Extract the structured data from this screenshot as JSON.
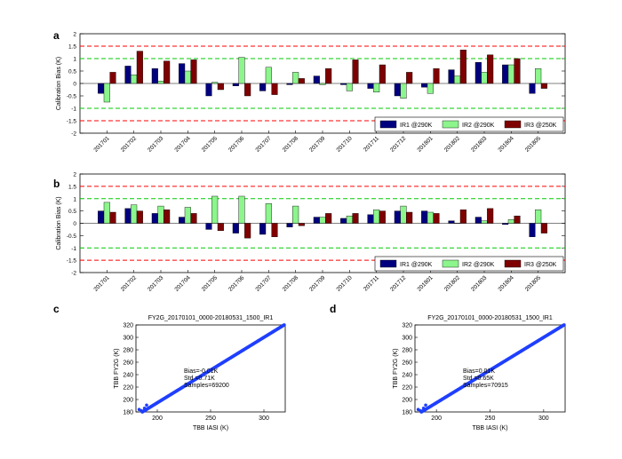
{
  "colors": {
    "IR1": "#00007f",
    "IR2": "#8cf58c",
    "IR3": "#7f0000",
    "limit_outer": "#ff0000",
    "limit_inner": "#00cc00",
    "scatter": "#1f3fff"
  },
  "chart_data": [
    {
      "panel": "a",
      "type": "bar",
      "ylabel": "Calibration Bias (K)",
      "ylim": [
        -2,
        2
      ],
      "yticks": [
        -2,
        -1.5,
        -1,
        -0.5,
        0,
        0.5,
        1,
        1.5,
        2
      ],
      "ytick_labels": [
        "-2",
        "-1.5",
        "-1",
        "-0.5",
        "0",
        "0.5",
        "1",
        "1.5",
        "2"
      ],
      "reference_lines": [
        {
          "y": 1.5,
          "color": "red"
        },
        {
          "y": 1,
          "color": "green"
        },
        {
          "y": -1,
          "color": "green"
        },
        {
          "y": -1.5,
          "color": "red"
        }
      ],
      "categories": [
        "201701",
        "201702",
        "201703",
        "201704",
        "201705",
        "201706",
        "201707",
        "201708",
        "201709",
        "201710",
        "201711",
        "201712",
        "201801",
        "201802",
        "201803",
        "201804",
        "201805"
      ],
      "series": [
        {
          "name": "IR1 @290K",
          "values": [
            -0.4,
            0.7,
            0.6,
            0.8,
            -0.5,
            -0.1,
            -0.3,
            -0.05,
            0.3,
            -0.05,
            -0.2,
            -0.5,
            -0.15,
            0.55,
            0.85,
            0.75,
            -0.4
          ]
        },
        {
          "name": "IR2 @290K",
          "values": [
            -0.75,
            0.35,
            0.1,
            0.5,
            0.05,
            1.05,
            0.65,
            0.45,
            -0.05,
            -0.3,
            -0.35,
            -0.6,
            -0.4,
            0.3,
            0.45,
            0.75,
            0.6
          ]
        },
        {
          "name": "IR3 @250K",
          "values": [
            0.45,
            1.3,
            0.9,
            0.95,
            -0.25,
            -0.5,
            -0.45,
            0.2,
            0.6,
            0.95,
            0.75,
            0.45,
            0.6,
            1.35,
            1.15,
            1.0,
            -0.2
          ]
        }
      ],
      "legend": [
        "IR1 @290K",
        "IR2 @290K",
        "IR3 @250K"
      ],
      "legend_position": "bottom-right"
    },
    {
      "panel": "b",
      "type": "bar",
      "ylabel": "Calibration Bias (K)",
      "ylim": [
        -2,
        2
      ],
      "yticks": [
        -2,
        -1.5,
        -1,
        -0.5,
        0,
        0.5,
        1,
        1.5,
        2
      ],
      "ytick_labels": [
        "-2",
        "-1.5",
        "-1",
        "-0.5",
        "0",
        "0.5",
        "1",
        "1.5",
        "2"
      ],
      "reference_lines": [
        {
          "y": 1.5,
          "color": "red"
        },
        {
          "y": 1,
          "color": "green"
        },
        {
          "y": -1,
          "color": "green"
        },
        {
          "y": -1.5,
          "color": "red"
        }
      ],
      "categories": [
        "201701",
        "201702",
        "201703",
        "201704",
        "201705",
        "201706",
        "201707",
        "201708",
        "201709",
        "201710",
        "201711",
        "201712",
        "201801",
        "201802",
        "201803",
        "201804",
        "201805"
      ],
      "series": [
        {
          "name": "IR1 @290K",
          "values": [
            0.5,
            0.6,
            0.4,
            0.25,
            -0.25,
            -0.4,
            -0.45,
            -0.15,
            0.25,
            0.2,
            0.35,
            0.5,
            0.5,
            0.1,
            0.25,
            -0.05,
            -0.55
          ]
        },
        {
          "name": "IR2 @290K",
          "values": [
            0.85,
            0.75,
            0.7,
            0.65,
            1.1,
            1.1,
            0.8,
            0.7,
            0.25,
            0.3,
            0.55,
            0.7,
            0.45,
            0.0,
            0.1,
            0.15,
            0.55
          ]
        },
        {
          "name": "IR3 @250K",
          "values": [
            0.45,
            0.5,
            0.55,
            0.4,
            -0.3,
            -0.6,
            -0.55,
            -0.1,
            0.4,
            0.4,
            0.5,
            0.45,
            0.4,
            0.55,
            0.6,
            0.3,
            -0.4
          ]
        }
      ],
      "legend": [
        "IR1 @290K",
        "IR2 @290K",
        "IR3 @250K"
      ],
      "legend_position": "bottom-right"
    },
    {
      "panel": "c",
      "type": "scatter",
      "title": "FY2G_20170101_0000-20180531_1500_IR1",
      "xlabel": "TBB IASI (K)",
      "ylabel": "TBB FY2G (K)",
      "xlim": [
        180,
        320
      ],
      "ylim": [
        180,
        320
      ],
      "xticks": [
        200,
        250,
        300
      ],
      "yticks": [
        180,
        200,
        220,
        240,
        260,
        280,
        300,
        320
      ],
      "points_from_to": [
        [
          186,
          180
        ],
        [
          319,
          320
        ]
      ],
      "stats": [
        "Bias=-0.01K",
        "Std =0.71K",
        "Samples=69200"
      ]
    },
    {
      "panel": "d",
      "type": "scatter",
      "title": "FY2G_20170101_0000-20180531_1500_IR1",
      "xlabel": "TBB IASI (K)",
      "ylabel": "TBB FY2G (K)",
      "xlim": [
        180,
        320
      ],
      "ylim": [
        180,
        320
      ],
      "xticks": [
        200,
        250,
        300
      ],
      "yticks": [
        180,
        200,
        220,
        240,
        260,
        280,
        300,
        320
      ],
      "points_from_to": [
        [
          186,
          180
        ],
        [
          319,
          320
        ]
      ],
      "stats": [
        "Bias=0.01K",
        "Std =0.65K",
        "Samples=70915"
      ]
    }
  ]
}
